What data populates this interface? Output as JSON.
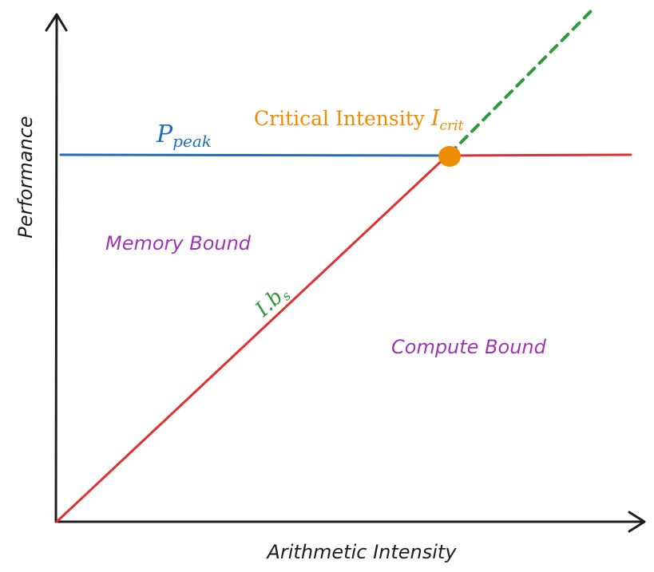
{
  "axes": {
    "y_label": "Performance",
    "x_label": "Arithmetic Intensity"
  },
  "lines": {
    "peak": {
      "symbol": "P",
      "subscript": "peak",
      "color": "#1f6fbf"
    },
    "bandwidth": {
      "symbol": "I.b",
      "subscript": "s",
      "color": "#2e9a3a"
    },
    "roofline_color": "#e03131",
    "extension_color": "#2e9a3a"
  },
  "critical_point": {
    "label_text": "Critical Intensity ",
    "symbol": "I",
    "subscript": "crit",
    "color": "#f08c00"
  },
  "regions": {
    "memory": {
      "label": "Memory Bound",
      "color": "#9c36b5"
    },
    "compute": {
      "label": "Compute Bound",
      "color": "#9c36b5"
    }
  },
  "axis_color": "#1e1e1e"
}
